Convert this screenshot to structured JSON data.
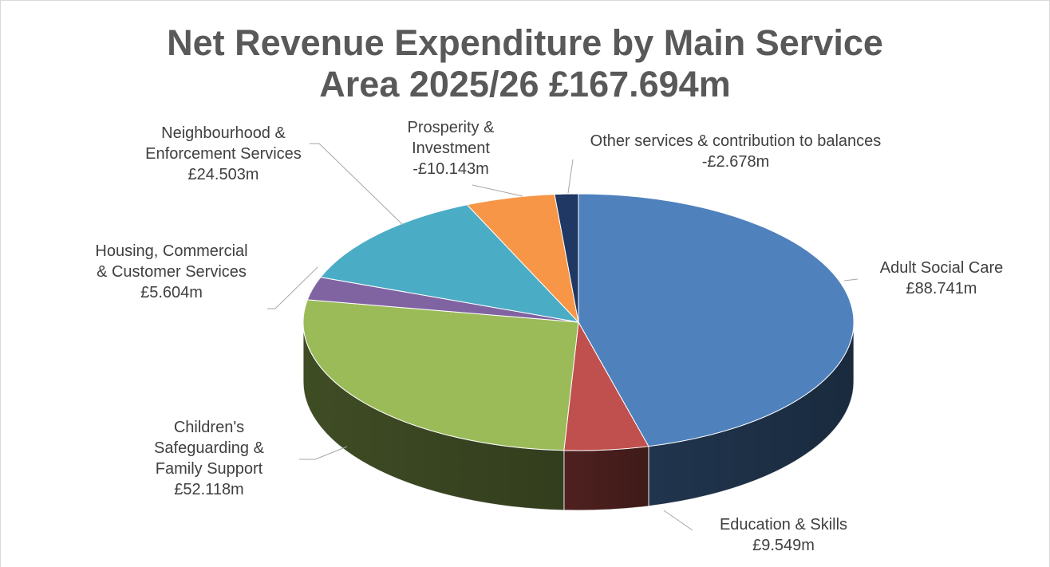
{
  "chart_data": {
    "type": "pie",
    "title": "Net Revenue Expenditure by Main Service Area 2025/26 £167.694m",
    "categories": [
      "Adult Social Care",
      "Education & Skills",
      "Children's Safeguarding & Family Support",
      "Housing, Commercial & Customer Services",
      "Neighbourhood & Enforcement Services",
      "Prosperity & Investment",
      "Other services & contribution to balances"
    ],
    "values": [
      88.741,
      9.549,
      52.118,
      5.604,
      24.503,
      -10.143,
      -2.678
    ],
    "value_labels": [
      "£88.741m",
      "£9.549m",
      "£52.118m",
      "£5.604m",
      "£24.503m",
      "-£10.143m",
      "-£2.678m"
    ],
    "colors": [
      "#4f81bd",
      "#c0504d",
      "#9bbb59",
      "#8064a2",
      "#4bacc6",
      "#f79646",
      "#1f3864"
    ]
  }
}
